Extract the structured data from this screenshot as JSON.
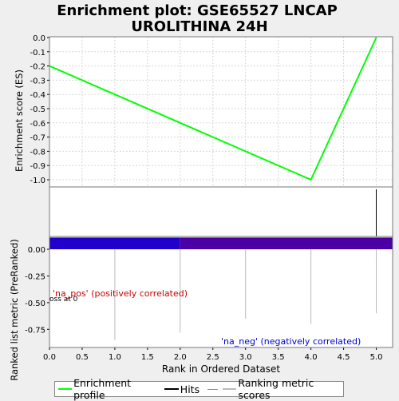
{
  "chart_data": {
    "type": "line",
    "title_line1": "Enrichment plot: GSE65527 LNCAP",
    "title_line2": "UROLITHINA 24H",
    "top_panel": {
      "ylabel": "Enrichment score (ES)",
      "ylim": [
        -1.0,
        0.0
      ],
      "yticks": [
        "0.0",
        "-0.1",
        "-0.2",
        "-0.3",
        "-0.4",
        "-0.5",
        "-0.6",
        "-0.7",
        "-0.8",
        "-0.9",
        "-1.0"
      ],
      "series": [
        {
          "name": "Enrichment profile",
          "color": "#00ff00",
          "x": [
            0,
            4,
            5
          ],
          "y": [
            -0.2,
            -1.0,
            0.0
          ]
        }
      ],
      "grid": true
    },
    "hits_panel": {
      "hits_x": [
        5
      ],
      "color": "#000000"
    },
    "bottom_panel": {
      "ylabel": "Ranked list metric (PreRanked)",
      "ylim": [
        -0.92,
        0.12
      ],
      "yticks": [
        "0.00",
        "-0.25",
        "-0.50",
        "-0.75"
      ],
      "xlabel": "Rank in Ordered Dataset",
      "xlim": [
        0,
        5.25
      ],
      "xticks": [
        "0.0",
        "0.5",
        "1.0",
        "1.5",
        "2.0",
        "2.5",
        "3.0",
        "3.5",
        "4.0",
        "4.5",
        "5.0"
      ],
      "band_segments": [
        {
          "x0": 0,
          "x1": 2,
          "color": "#2200cc"
        },
        {
          "x0": 2,
          "x1": 5.25,
          "color": "#4b00a6"
        }
      ],
      "band_y": [
        0.0,
        0.11
      ],
      "ranking_lines": [
        {
          "x": 1,
          "y": -0.85
        },
        {
          "x": 2,
          "y": -0.78
        },
        {
          "x": 3,
          "y": -0.65
        },
        {
          "x": 4,
          "y": -0.7
        },
        {
          "x": 5,
          "y": -0.6
        }
      ],
      "annotation_pos": "'na_pos' (positively correlated)",
      "annotation_pos_color": "#cc0000",
      "annotation_neg": "'na_neg' (negatively correlated)",
      "annotation_neg_color": "#0000cc",
      "crosses_text": "oss at 0"
    },
    "legend": [
      {
        "label": "Enrichment profile",
        "color": "#00ff00"
      },
      {
        "label": "Hits",
        "color": "#000000"
      },
      {
        "label": "Ranking metric scores",
        "color": "#bbbbbb"
      }
    ]
  }
}
